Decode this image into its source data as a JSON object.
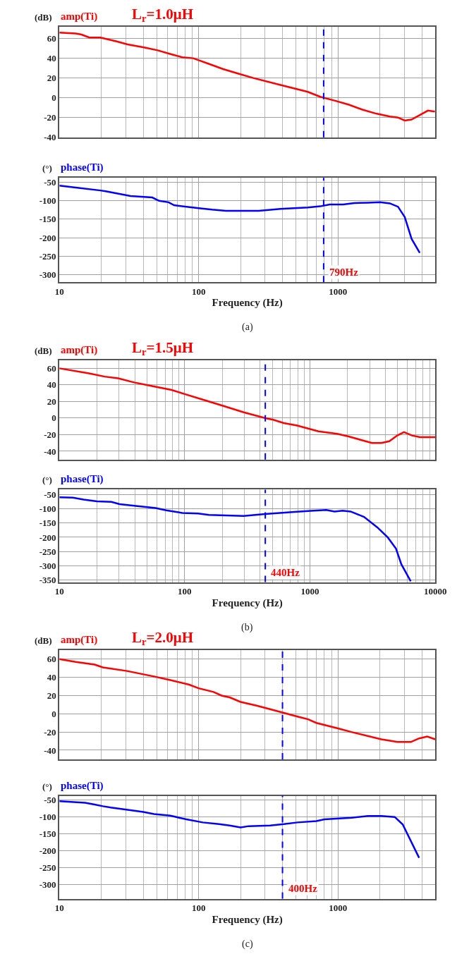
{
  "chart_data": [
    {
      "type": "line",
      "title": "L$_{r}$=1.0μH",
      "ylabel": "(dB)",
      "log": "x",
      "xlim": [
        10,
        5000
      ],
      "xticks": [
        10,
        100,
        1000
      ],
      "ylim": [
        -40,
        72
      ],
      "yticks": [
        -40,
        -20,
        0,
        20,
        40,
        60
      ],
      "grid": true,
      "tick_labels": "y",
      "series": [
        {
          "name": "amp(Ti)",
          "color": "#ff0000",
          "x": [
            10,
            13.1,
            14.4,
            16.4,
            19.7,
            25.8,
            30.9,
            40.5,
            50.8,
            63.6,
            76.3,
            91.4,
            100,
            120,
            150,
            197,
            247,
            387,
            608,
            746,
            955,
            1200,
            1500,
            1880,
            2360,
            2700,
            3020,
            3380,
            4430,
            4970
          ],
          "values": [
            66,
            65,
            64,
            61,
            61,
            57,
            54,
            51,
            48,
            44,
            41,
            40,
            38,
            34,
            29,
            24,
            20,
            13,
            6,
            1,
            -3,
            -7,
            -12,
            -16,
            -19,
            -20,
            -23,
            -22,
            -13,
            -14
          ]
        }
      ],
      "ref_lines": [
        {
          "axis": "x",
          "value": 790,
          "color": "#0000ff",
          "line_style": "dashed"
        }
      ]
    },
    {
      "type": "line",
      "ylabel": "(°)",
      "xlabel": "Frequency (Hz)",
      "log": "x",
      "xlim": [
        10,
        5000
      ],
      "xticks": [
        10,
        100,
        1000
      ],
      "ylim": [
        -321,
        -38
      ],
      "yticks": [
        -300,
        -250,
        -200,
        -150,
        -100,
        -50
      ],
      "grid": true,
      "series": [
        {
          "name": "phase(Ti)",
          "color": "#0000ff",
          "x": [
            10,
            13.1,
            19.7,
            21.5,
            32.4,
            46.4,
            52,
            60.8,
            66.6,
            100,
            125,
            157,
            270,
            387,
            608,
            746,
            873,
            1090,
            1310,
            1640,
            2010,
            2360,
            2700,
            3020,
            3380,
            3870
          ],
          "values": [
            -59,
            -64,
            -72,
            -74,
            -87,
            -91,
            -100,
            -104,
            -112,
            -120,
            -124,
            -127,
            -127,
            -122,
            -118,
            -115,
            -110,
            -110,
            -106,
            -105,
            -104,
            -107,
            -116,
            -144,
            -203,
            -241
          ]
        }
      ],
      "ref_lines": [
        {
          "axis": "x",
          "value": 790,
          "label": "790Hz",
          "color": "#0000ff",
          "line_style": "dashed"
        }
      ],
      "annotations": [
        "(a)"
      ]
    },
    {
      "type": "line",
      "title": "L$_{r}$=1.5μH",
      "ylabel": "(dB)",
      "log": "x",
      "xlim": [
        10,
        10000
      ],
      "xticks": [
        10,
        100,
        1000,
        10000
      ],
      "ylim": [
        -50,
        70
      ],
      "yticks": [
        -40,
        -20,
        0,
        20,
        40,
        60
      ],
      "grid": true,
      "tick_labels": "y",
      "series": [
        {
          "name": "amp(Ti)",
          "color": "#ff0000",
          "x": [
            10,
            17.2,
            23,
            29.4,
            39.5,
            53.1,
            78.6,
            100,
            141,
            200,
            296,
            440,
            508,
            618,
            790,
            1170,
            1650,
            2010,
            3120,
            3710,
            4300,
            4980,
            5630,
            6530,
            7560,
            10000
          ],
          "values": [
            60,
            54,
            50,
            48,
            43,
            39,
            34,
            29,
            22,
            15,
            7,
            0,
            -2,
            -6,
            -9,
            -16,
            -19,
            -22,
            -30,
            -30,
            -28,
            -21,
            -17,
            -21,
            -23,
            -23
          ]
        }
      ],
      "ref_lines": [
        {
          "axis": "x",
          "value": 440,
          "color": "#0000ff",
          "line_style": "dashed"
        }
      ]
    },
    {
      "type": "line",
      "ylabel": "(°)",
      "xlabel": "Frequency (Hz)",
      "log": "x",
      "xlim": [
        10,
        10000
      ],
      "xticks": [
        10,
        100,
        1000,
        10000
      ],
      "ylim": [
        -358,
        -32
      ],
      "yticks": [
        -350,
        -300,
        -250,
        -200,
        -150,
        -100,
        -50
      ],
      "grid": true,
      "series": [
        {
          "name": "phase(Ti)",
          "color": "#0000ff",
          "x": [
            10,
            12.8,
            15.6,
            19.9,
            26,
            30.2,
            39.5,
            58.6,
            71.3,
            95.7,
            128,
            156,
            296,
            438,
            790,
            1010,
            1350,
            1570,
            1820,
            2110,
            2700,
            3450,
            4190,
            4860,
            5360,
            6370
          ],
          "values": [
            -59,
            -60,
            -67,
            -73,
            -75,
            -83,
            -89,
            -97,
            -105,
            -114,
            -116,
            -121,
            -125,
            -118,
            -110,
            -107,
            -104,
            -109,
            -106,
            -109,
            -128,
            -165,
            -201,
            -240,
            -295,
            -355
          ]
        }
      ],
      "ref_lines": [
        {
          "axis": "x",
          "value": 440,
          "label": "440Hz",
          "color": "#0000ff",
          "line_style": "dashed"
        }
      ],
      "annotations": [
        "(b)"
      ]
    },
    {
      "type": "line",
      "title": "L$_{r}$=2.0μH",
      "ylabel": "(dB)",
      "log": "x",
      "xlim": [
        10,
        5000
      ],
      "xticks": [
        10,
        100,
        1000
      ],
      "ylim": [
        -50,
        70
      ],
      "yticks": [
        -40,
        -20,
        0,
        20,
        40,
        60
      ],
      "grid": true,
      "tick_labels": "y",
      "series": [
        {
          "name": "amp(Ti)",
          "color": "#ff0000",
          "x": [
            10,
            13.1,
            17.9,
            20.5,
            30.6,
            47.8,
            62.6,
            85.5,
            100,
            128,
            146,
            167,
            200,
            261,
            409,
            512,
            611,
            700,
            1000,
            1250,
            2050,
            2680,
            3340,
            3830,
            4380,
            5000
          ],
          "values": [
            60,
            57,
            54,
            51,
            47,
            41,
            37,
            32,
            28,
            24,
            20,
            18,
            13,
            9,
            1,
            -3,
            -6,
            -10,
            -16,
            -20,
            -28,
            -31,
            -31,
            -27,
            -25,
            -28
          ]
        }
      ],
      "ref_lines": [
        {
          "axis": "x",
          "value": 400,
          "color": "#0000ff",
          "line_style": "dashed"
        }
      ]
    },
    {
      "type": "line",
      "ylabel": "(°)",
      "xlabel": "Frequency (Hz)",
      "log": "x",
      "xlim": [
        10,
        5000
      ],
      "xticks": [
        10,
        100,
        1000
      ],
      "ylim": [
        -342,
        -37
      ],
      "yticks": [
        -300,
        -250,
        -200,
        -150,
        -100,
        -50
      ],
      "grid": true,
      "series": [
        {
          "name": "phase(Ti)",
          "color": "#0000ff",
          "x": [
            10,
            15.3,
            17.9,
            20.5,
            23.4,
            40,
            47.8,
            62.6,
            81.8,
            107,
            140,
            167,
            200,
            229,
            327,
            409,
            512,
            700,
            800,
            1250,
            1640,
            2050,
            2560,
            2920,
            3830
          ],
          "values": [
            -53,
            -58,
            -63,
            -68,
            -72,
            -85,
            -91,
            -96,
            -107,
            -116,
            -121,
            -125,
            -131,
            -127,
            -125,
            -121,
            -116,
            -112,
            -107,
            -102,
            -97,
            -97,
            -100,
            -122,
            -221
          ]
        }
      ],
      "ref_lines": [
        {
          "axis": "x",
          "value": 400,
          "label": "400Hz",
          "color": "#0000ff",
          "line_style": "dashed"
        }
      ],
      "annotations": [
        "(c)"
      ]
    }
  ]
}
